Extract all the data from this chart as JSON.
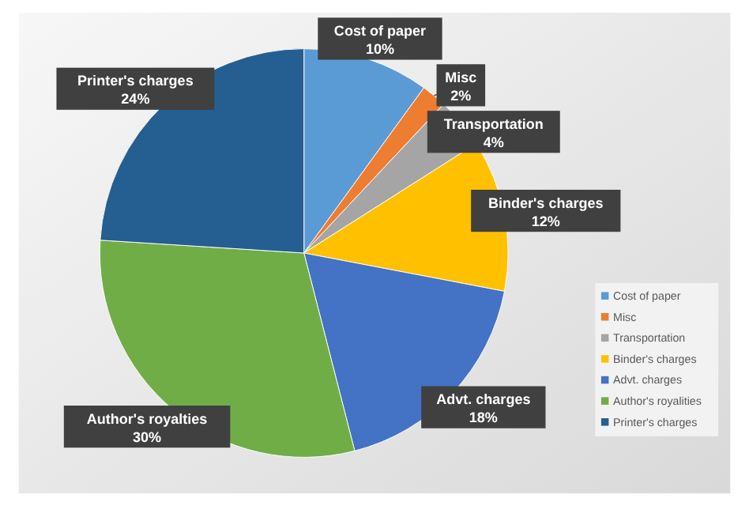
{
  "chart_data": {
    "type": "pie",
    "categories": [
      "Cost of paper",
      "Misc",
      "Transportation",
      "Binder's charges",
      "Advt. charges",
      "Author's royalities",
      "Printer's charges"
    ],
    "values": [
      10,
      2,
      4,
      12,
      18,
      30,
      24
    ],
    "colors": [
      "#5b9bd5",
      "#ed7d31",
      "#a5a5a5",
      "#ffc000",
      "#4472c4",
      "#70ad47",
      "#255e91"
    ],
    "value_labels": [
      "Cost of paper\n10%",
      "Misc\n2%",
      "Transportation\n4%",
      "Binder's charges\n12%",
      "Advt. charges\n18%",
      "Author's royalties\n30%",
      "Printer's charges\n24%"
    ],
    "legend": "right"
  }
}
